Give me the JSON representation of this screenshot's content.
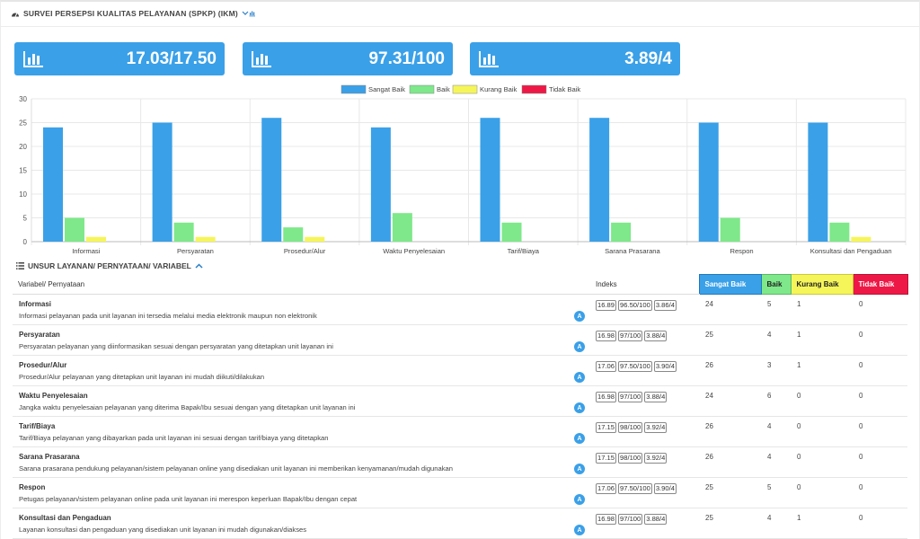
{
  "header": {
    "title": "SURVEI PERSEPSI KUALITAS PELAYANAN (SPKP) (IKM)",
    "toggle_icon": "chevron-down-icon"
  },
  "cards": [
    {
      "value": "17.03/17.50",
      "icon": "bar-chart-icon"
    },
    {
      "value": "97.31/100",
      "icon": "bar-chart-icon"
    },
    {
      "value": "3.89/4",
      "icon": "bar-chart-icon"
    }
  ],
  "colors": {
    "sangat_baik": "#3aa0e8",
    "baik": "#7ee88a",
    "kurang_baik": "#f5f55a",
    "tidak_baik": "#ee1846"
  },
  "chart_data": {
    "type": "bar",
    "categories": [
      "Informasi",
      "Persyaratan",
      "Prosedur/Alur",
      "Waktu Penyelesaian",
      "Tarif/Biaya",
      "Sarana Prasarana",
      "Respon",
      "Konsultasi dan Pengaduan"
    ],
    "series": [
      {
        "name": "Sangat Baik",
        "color": "#3aa0e8",
        "values": [
          24,
          25,
          26,
          24,
          26,
          26,
          25,
          25
        ]
      },
      {
        "name": "Baik",
        "color": "#7ee88a",
        "values": [
          5,
          4,
          3,
          6,
          4,
          4,
          5,
          4
        ]
      },
      {
        "name": "Kurang Baik",
        "color": "#f5f55a",
        "values": [
          1,
          1,
          1,
          0,
          0,
          0,
          0,
          1
        ]
      },
      {
        "name": "Tidak Baik",
        "color": "#ee1846",
        "values": [
          0,
          0,
          0,
          0,
          0,
          0,
          0,
          0
        ]
      }
    ],
    "ylim": [
      0,
      30
    ],
    "yticks": [
      0,
      5,
      10,
      15,
      20,
      25,
      30
    ],
    "legend_position": "top-center",
    "grid": true
  },
  "section": {
    "title": "UNSUR LAYANAN/ PERNYATAAN/ VARIABEL"
  },
  "table": {
    "headers": {
      "variabel": "Variabel/ Pernyataan",
      "indeks": "Indeks",
      "sb": "Sangat Baik",
      "b": "Baik",
      "kb": "Kurang Baik",
      "tb": "Tidak Baik"
    },
    "badge_label": "A",
    "rows": [
      {
        "title": "Informasi",
        "desc": "Informasi pelayanan pada unit layanan ini tersedia melalui media elektronik maupun non elektronik",
        "idx": [
          "16.89",
          "96.50/100",
          "3.86/4"
        ],
        "sb": "24",
        "b": "5",
        "kb": "1",
        "tb": "0"
      },
      {
        "title": "Persyaratan",
        "desc": "Persyaratan pelayanan yang diinformasikan sesuai dengan persyaratan yang ditetapkan unit layanan ini",
        "idx": [
          "16.98",
          "97/100",
          "3.88/4"
        ],
        "sb": "25",
        "b": "4",
        "kb": "1",
        "tb": "0"
      },
      {
        "title": "Prosedur/Alur",
        "desc": "Prosedur/Alur pelayanan yang ditetapkan unit layanan ini mudah diikuti/dilakukan",
        "idx": [
          "17.06",
          "97.50/100",
          "3.90/4"
        ],
        "sb": "26",
        "b": "3",
        "kb": "1",
        "tb": "0"
      },
      {
        "title": "Waktu Penyelesaian",
        "desc": "Jangka waktu penyelesaian pelayanan yang diterima Bapak/Ibu sesuai dengan yang ditetapkan unit layanan ini",
        "idx": [
          "16.98",
          "97/100",
          "3.88/4"
        ],
        "sb": "24",
        "b": "6",
        "kb": "0",
        "tb": "0"
      },
      {
        "title": "Tarif/Biaya",
        "desc": "Tarif/Biaya pelayanan yang dibayarkan pada unit layanan ini sesuai dengan tarif/biaya yang ditetapkan",
        "idx": [
          "17.15",
          "98/100",
          "3.92/4"
        ],
        "sb": "26",
        "b": "4",
        "kb": "0",
        "tb": "0"
      },
      {
        "title": "Sarana Prasarana",
        "desc": "Sarana prasarana pendukung pelayanan/sistem pelayanan online yang disediakan unit layanan ini memberikan kenyamanan/mudah digunakan",
        "idx": [
          "17.15",
          "98/100",
          "3.92/4"
        ],
        "sb": "26",
        "b": "4",
        "kb": "0",
        "tb": "0"
      },
      {
        "title": "Respon",
        "desc": "Petugas pelayanan/sistem pelayanan online pada unit layanan ini merespon keperluan Bapak/Ibu dengan cepat",
        "idx": [
          "17.06",
          "97.50/100",
          "3.90/4"
        ],
        "sb": "25",
        "b": "5",
        "kb": "0",
        "tb": "0"
      },
      {
        "title": "Konsultasi dan Pengaduan",
        "desc": "Layanan konsultasi dan pengaduan yang disediakan unit layanan ini mudah digunakan/diakses",
        "idx": [
          "16.98",
          "97/100",
          "3.88/4"
        ],
        "sb": "25",
        "b": "4",
        "kb": "1",
        "tb": "0"
      }
    ]
  }
}
